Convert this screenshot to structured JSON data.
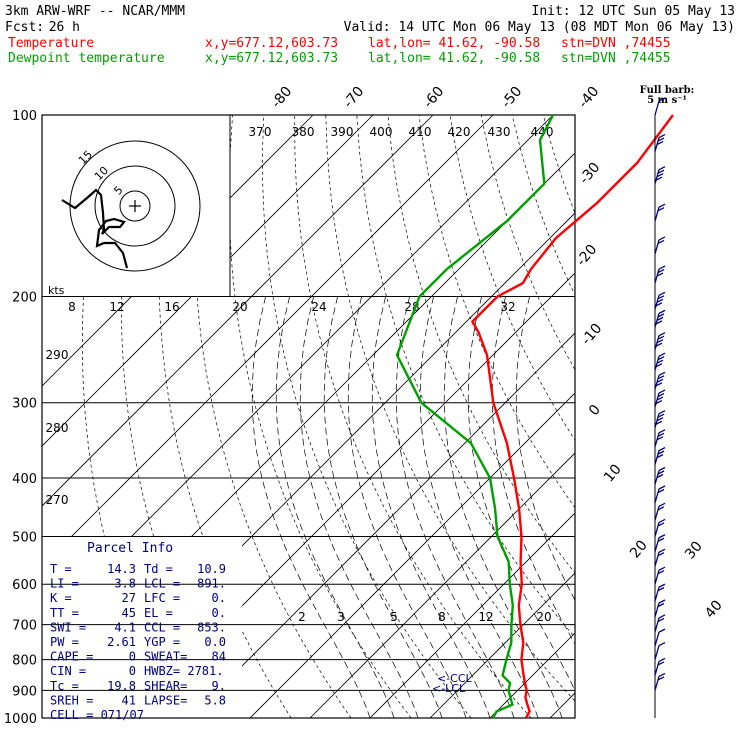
{
  "header": {
    "model_line": "3km ARW-WRF -- NCAR/MMM",
    "init_line": "Init: 12 UTC Sun 05 May 13",
    "fcst_label": "Fcst:",
    "fcst_value": "26 h",
    "valid_line": "Valid: 14 UTC Mon 06 May 13 (08 MDT Mon 06 May 13)"
  },
  "legend": [
    {
      "name": "Temperature",
      "color": "#ff0000",
      "xy": "x,y=677.12,603.73",
      "latlon": "lat,lon= 41.62, -90.58",
      "stn": "stn=DVN ,74455"
    },
    {
      "name": "Dewpoint temperature",
      "color": "#00a000",
      "xy": "x,y=677.12,603.73",
      "latlon": "lat,lon= 41.62, -90.58",
      "stn": "stn=DVN ,74455"
    }
  ],
  "barb_key": {
    "line1": "Full barb:",
    "line2": "5 m s⁻¹"
  },
  "parcel_info": {
    "title": "Parcel Info",
    "rows": [
      [
        "T  =",
        "14.3",
        "Td =",
        "10.9"
      ],
      [
        "LI =",
        "3.8",
        "LCL =",
        "891."
      ],
      [
        "K  =",
        "27",
        "LFC =",
        "0."
      ],
      [
        "TT =",
        "45",
        "EL  =",
        "0."
      ],
      [
        "SWI =",
        "4.1",
        "CCL =",
        "853."
      ],
      [
        "PW =",
        "2.61",
        "YGP =",
        "0.0"
      ],
      [
        "CAPE =",
        "0",
        "SWEAT=",
        "84"
      ],
      [
        "CIN =",
        "0",
        "HWBZ= 2781.",
        ""
      ],
      [
        "Tc =",
        "19.8",
        "SHEAR=",
        "9."
      ],
      [
        "SREH =",
        "41",
        "LAPSE=",
        "5.8"
      ],
      [
        "CELL = 071/07",
        "",
        "",
        ""
      ]
    ]
  },
  "annotations": {
    "ccl": "<-CCL",
    "lcl": "<-LCL",
    "hodo_units": "kts"
  },
  "chart_data": {
    "type": "line",
    "title": "",
    "ylabel": "",
    "y_scale": "log",
    "pressure_ticks": [
      100,
      200,
      300,
      400,
      500,
      600,
      700,
      800,
      900,
      1000
    ],
    "isotherm_labels": [
      "-80",
      "-70",
      "-60",
      "-50",
      "-40",
      "-30",
      "-20",
      "-10",
      "0",
      "10",
      "20",
      "30",
      "40"
    ],
    "dry_adiabat_labels": [
      "370",
      "380",
      "390",
      "400",
      "410",
      "420",
      "430",
      "440"
    ],
    "dry_adiabat_labels_left": [
      "290",
      "280",
      "270"
    ],
    "mixing_ratio_labels": [
      "2",
      "3",
      "5",
      "8",
      "12",
      "20"
    ],
    "moist_labels_upper": [
      "8",
      "12",
      "16",
      "20",
      "24",
      "28",
      "32"
    ],
    "hodograph_ring_labels": [
      "15",
      "10",
      "5"
    ],
    "series": [
      {
        "name": "Temperature",
        "color": "#ff0000",
        "points": [
          [
            1000,
            16.0
          ],
          [
            975,
            15.5
          ],
          [
            950,
            14.0
          ],
          [
            925,
            12.5
          ],
          [
            900,
            11.5
          ],
          [
            875,
            10.0
          ],
          [
            850,
            8.5
          ],
          [
            800,
            5.5
          ],
          [
            750,
            3.0
          ],
          [
            700,
            -0.5
          ],
          [
            650,
            -4.0
          ],
          [
            600,
            -7.0
          ],
          [
            550,
            -11.0
          ],
          [
            500,
            -15.0
          ],
          [
            450,
            -20.0
          ],
          [
            400,
            -26.0
          ],
          [
            350,
            -33.0
          ],
          [
            300,
            -42.0
          ],
          [
            250,
            -51.0
          ],
          [
            230,
            -56.0
          ],
          [
            220,
            -59.0
          ],
          [
            200,
            -59.0
          ],
          [
            190,
            -57.0
          ],
          [
            180,
            -58.0
          ],
          [
            160,
            -59.0
          ],
          [
            140,
            -58.0
          ],
          [
            120,
            -58.0
          ],
          [
            100,
            -60.0
          ]
        ]
      },
      {
        "name": "Dewpoint temperature",
        "color": "#00a000",
        "points": [
          [
            1000,
            10.5
          ],
          [
            975,
            10.0
          ],
          [
            950,
            11.5
          ],
          [
            925,
            10.0
          ],
          [
            900,
            8.5
          ],
          [
            875,
            7.5
          ],
          [
            850,
            5.0
          ],
          [
            800,
            3.0
          ],
          [
            750,
            1.0
          ],
          [
            700,
            -2.0
          ],
          [
            650,
            -5.0
          ],
          [
            600,
            -9.0
          ],
          [
            550,
            -13.0
          ],
          [
            500,
            -19.0
          ],
          [
            450,
            -24.0
          ],
          [
            400,
            -30.0
          ],
          [
            350,
            -39.0
          ],
          [
            300,
            -54.0
          ],
          [
            250,
            -66.0
          ],
          [
            200,
            -72.0
          ],
          [
            180,
            -72.0
          ],
          [
            150,
            -70.0
          ],
          [
            130,
            -70.0
          ],
          [
            110,
            -78.0
          ],
          [
            100,
            -80.0
          ]
        ]
      }
    ],
    "wind_barbs": [
      {
        "p": 100,
        "speed_ms": 5
      },
      {
        "p": 115,
        "speed_ms": 15
      },
      {
        "p": 130,
        "speed_ms": 20
      },
      {
        "p": 150,
        "speed_ms": 10
      },
      {
        "p": 170,
        "speed_ms": 10
      },
      {
        "p": 190,
        "speed_ms": 15
      },
      {
        "p": 210,
        "speed_ms": 20
      },
      {
        "p": 225,
        "speed_ms": 20
      },
      {
        "p": 245,
        "speed_ms": 20
      },
      {
        "p": 265,
        "speed_ms": 20
      },
      {
        "p": 285,
        "speed_ms": 20
      },
      {
        "p": 305,
        "speed_ms": 20
      },
      {
        "p": 330,
        "speed_ms": 20
      },
      {
        "p": 355,
        "speed_ms": 15
      },
      {
        "p": 380,
        "speed_ms": 15
      },
      {
        "p": 410,
        "speed_ms": 15
      },
      {
        "p": 440,
        "speed_ms": 10
      },
      {
        "p": 470,
        "speed_ms": 10
      },
      {
        "p": 500,
        "speed_ms": 10
      },
      {
        "p": 530,
        "speed_ms": 10
      },
      {
        "p": 560,
        "speed_ms": 10
      },
      {
        "p": 600,
        "speed_ms": 10
      },
      {
        "p": 640,
        "speed_ms": 10
      },
      {
        "p": 680,
        "speed_ms": 10
      },
      {
        "p": 720,
        "speed_ms": 10
      },
      {
        "p": 760,
        "speed_ms": 5
      },
      {
        "p": 800,
        "speed_ms": 5
      },
      {
        "p": 850,
        "speed_ms": 10
      },
      {
        "p": 900,
        "speed_ms": 10
      }
    ]
  }
}
